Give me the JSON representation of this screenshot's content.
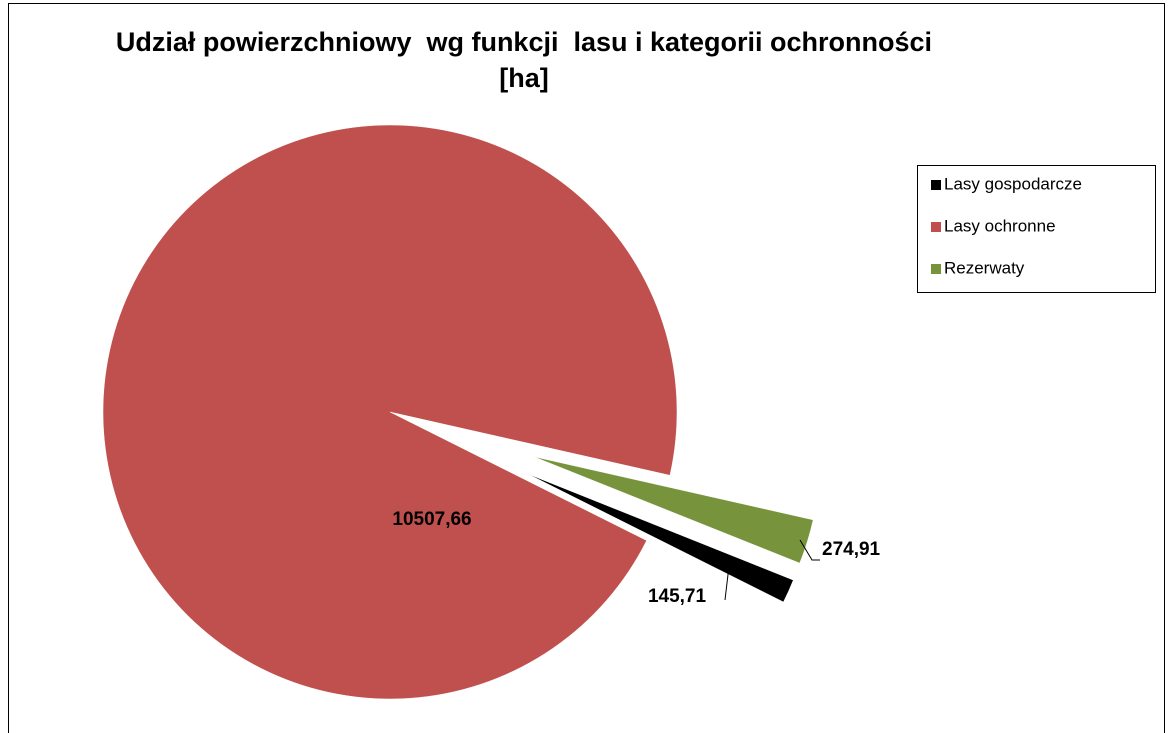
{
  "chart_data": {
    "type": "pie",
    "title": "Udział powierzchniowy  wg funkcji  lasu i kategorii ochronności  [ha]",
    "categories": [
      "Lasy gospodarcze",
      "Lasy ochronne",
      "Rezerwaty"
    ],
    "values": [
      145.71,
      10507.66,
      274.91
    ],
    "value_labels": [
      "145,71",
      "10507,66",
      "274,91"
    ],
    "colors": [
      "#000000",
      "#c0504d",
      "#77933c"
    ],
    "legend": "right"
  }
}
